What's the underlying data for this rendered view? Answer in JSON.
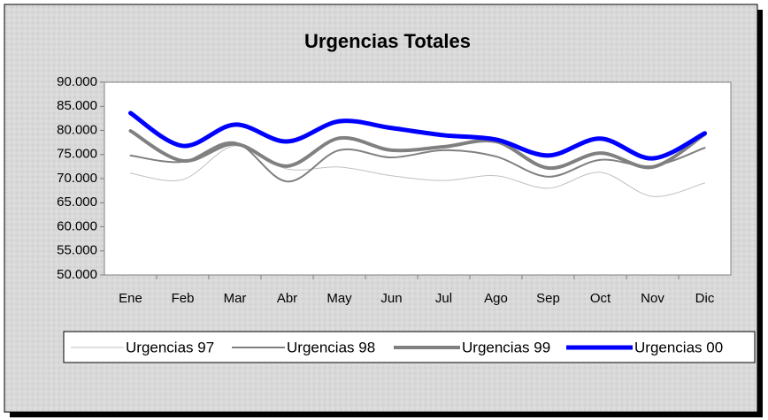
{
  "chart_data": {
    "type": "line",
    "title": "Urgencias Totales",
    "categories": [
      "Ene",
      "Feb",
      "Mar",
      "Abr",
      "May",
      "Jun",
      "Jul",
      "Ago",
      "Sep",
      "Oct",
      "Nov",
      "Dic"
    ],
    "series": [
      {
        "name": "Urgencias 97",
        "color": "#c0c0c0",
        "width": 1,
        "values": [
          71100,
          69800,
          76800,
          72000,
          72400,
          70600,
          69600,
          70600,
          68000,
          71300,
          66300,
          69100
        ]
      },
      {
        "name": "Urgencias 98",
        "color": "#808080",
        "width": 2,
        "values": [
          74800,
          73500,
          77500,
          69400,
          75900,
          74400,
          75900,
          74600,
          70400,
          73900,
          72600,
          76400
        ]
      },
      {
        "name": "Urgencias 99",
        "color": "#808080",
        "width": 4,
        "values": [
          79900,
          73700,
          77200,
          72600,
          78400,
          75900,
          76600,
          77700,
          72200,
          75300,
          72400,
          79200
        ]
      },
      {
        "name": "Urgencias 00",
        "color": "#0000ff",
        "width": 5,
        "values": [
          83600,
          76800,
          81200,
          77700,
          81900,
          80500,
          79000,
          78100,
          74800,
          78300,
          74200,
          79400
        ]
      }
    ],
    "ylim": [
      50000,
      90000
    ],
    "yticks": [
      {
        "value": 50000,
        "label": "50.000"
      },
      {
        "value": 55000,
        "label": "55.000"
      },
      {
        "value": 60000,
        "label": "60.000"
      },
      {
        "value": 65000,
        "label": "65.000"
      },
      {
        "value": 70000,
        "label": "70.000"
      },
      {
        "value": 75000,
        "label": "75.000"
      },
      {
        "value": 80000,
        "label": "80.000"
      },
      {
        "value": 85000,
        "label": "85.000"
      },
      {
        "value": 90000,
        "label": "90.000"
      }
    ],
    "smooth": true,
    "legend": "bottom"
  }
}
